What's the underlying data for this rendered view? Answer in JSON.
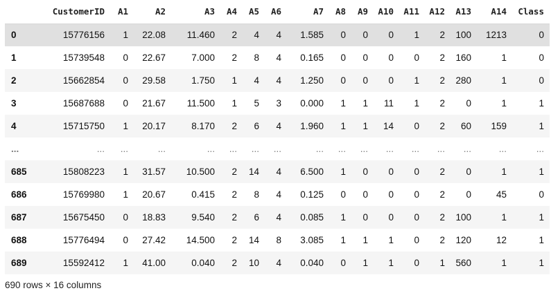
{
  "table": {
    "columns": [
      "",
      "CustomerID",
      "A1",
      "A2",
      "A3",
      "A4",
      "A5",
      "A6",
      "A7",
      "A8",
      "A9",
      "A10",
      "A11",
      "A12",
      "A13",
      "A14",
      "Class"
    ],
    "rows": [
      {
        "index": "0",
        "cells": [
          "15776156",
          "1",
          "22.08",
          "11.460",
          "2",
          "4",
          "4",
          "1.585",
          "0",
          "0",
          "0",
          "1",
          "2",
          "100",
          "1213",
          "0"
        ]
      },
      {
        "index": "1",
        "cells": [
          "15739548",
          "0",
          "22.67",
          "7.000",
          "2",
          "8",
          "4",
          "0.165",
          "0",
          "0",
          "0",
          "0",
          "2",
          "160",
          "1",
          "0"
        ]
      },
      {
        "index": "2",
        "cells": [
          "15662854",
          "0",
          "29.58",
          "1.750",
          "1",
          "4",
          "4",
          "1.250",
          "0",
          "0",
          "0",
          "1",
          "2",
          "280",
          "1",
          "0"
        ]
      },
      {
        "index": "3",
        "cells": [
          "15687688",
          "0",
          "21.67",
          "11.500",
          "1",
          "5",
          "3",
          "0.000",
          "1",
          "1",
          "11",
          "1",
          "2",
          "0",
          "1",
          "1"
        ]
      },
      {
        "index": "4",
        "cells": [
          "15715750",
          "1",
          "20.17",
          "8.170",
          "2",
          "6",
          "4",
          "1.960",
          "1",
          "1",
          "14",
          "0",
          "2",
          "60",
          "159",
          "1"
        ]
      },
      {
        "index": "...",
        "cells": [
          "...",
          "...",
          "...",
          "...",
          "...",
          "...",
          "...",
          "...",
          "...",
          "...",
          "...",
          "...",
          "...",
          "...",
          "...",
          "..."
        ]
      },
      {
        "index": "685",
        "cells": [
          "15808223",
          "1",
          "31.57",
          "10.500",
          "2",
          "14",
          "4",
          "6.500",
          "1",
          "0",
          "0",
          "0",
          "2",
          "0",
          "1",
          "1"
        ]
      },
      {
        "index": "686",
        "cells": [
          "15769980",
          "1",
          "20.67",
          "0.415",
          "2",
          "8",
          "4",
          "0.125",
          "0",
          "0",
          "0",
          "0",
          "2",
          "0",
          "45",
          "0"
        ]
      },
      {
        "index": "687",
        "cells": [
          "15675450",
          "0",
          "18.83",
          "9.540",
          "2",
          "6",
          "4",
          "0.085",
          "1",
          "0",
          "0",
          "0",
          "2",
          "100",
          "1",
          "1"
        ]
      },
      {
        "index": "688",
        "cells": [
          "15776494",
          "0",
          "27.42",
          "14.500",
          "2",
          "14",
          "8",
          "3.085",
          "1",
          "1",
          "1",
          "0",
          "2",
          "120",
          "12",
          "1"
        ]
      },
      {
        "index": "689",
        "cells": [
          "15592412",
          "1",
          "41.00",
          "0.040",
          "2",
          "10",
          "4",
          "0.040",
          "0",
          "1",
          "1",
          "0",
          "1",
          "560",
          "1",
          "1"
        ]
      }
    ]
  },
  "footer": {
    "shape_text": "690 rows × 16 columns"
  }
}
